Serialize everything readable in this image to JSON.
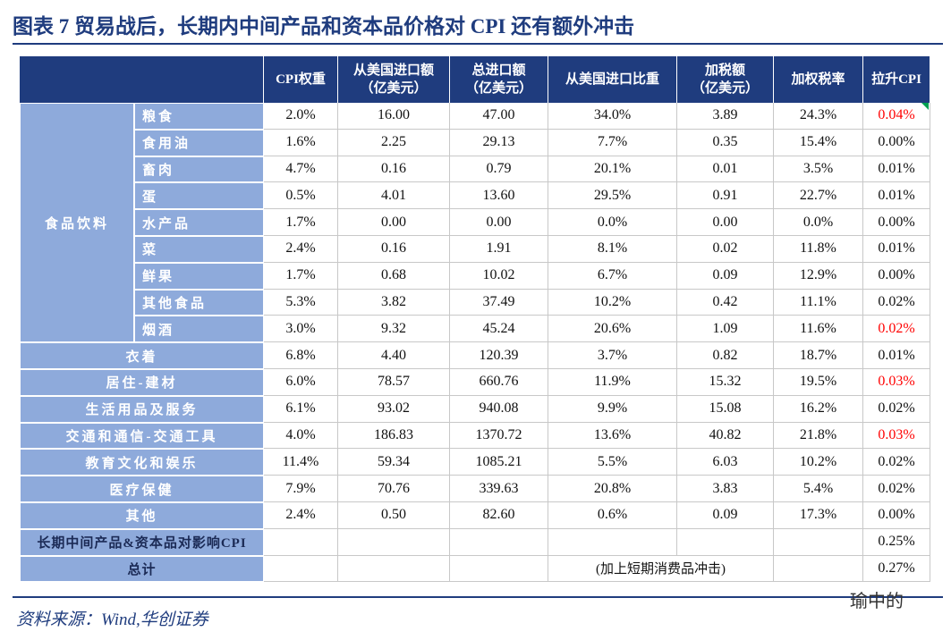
{
  "header": {
    "title": "图表 7  贸易战后，长期内中间产品和资本品价格对 CPI 还有额外冲击"
  },
  "table": {
    "columns": [
      [
        "CPI权重"
      ],
      [
        "从美国进口额",
        "（亿美元）"
      ],
      [
        "总进口额",
        "（亿美元）"
      ],
      [
        "从美国进口比重"
      ],
      [
        "加税额",
        "（亿美元）"
      ],
      [
        "加权税率"
      ],
      [
        "拉升CPI"
      ]
    ],
    "highlight_color": "#ff0000",
    "group": {
      "label": "食品饮料",
      "rows": [
        {
          "label": "粮食",
          "cells": [
            "2.0%",
            "16.00",
            "47.00",
            "34.0%",
            "3.89",
            "24.3%",
            "0.04%"
          ],
          "highlight": true
        },
        {
          "label": "食用油",
          "cells": [
            "1.6%",
            "2.25",
            "29.13",
            "7.7%",
            "0.35",
            "15.4%",
            "0.00%"
          ]
        },
        {
          "label": "畜肉",
          "cells": [
            "4.7%",
            "0.16",
            "0.79",
            "20.1%",
            "0.01",
            "3.5%",
            "0.01%"
          ]
        },
        {
          "label": "蛋",
          "cells": [
            "0.5%",
            "4.01",
            "13.60",
            "29.5%",
            "0.91",
            "22.7%",
            "0.01%"
          ]
        },
        {
          "label": "水产品",
          "cells": [
            "1.7%",
            "0.00",
            "0.00",
            "0.0%",
            "0.00",
            "0.0%",
            "0.00%"
          ]
        },
        {
          "label": "菜",
          "cells": [
            "2.4%",
            "0.16",
            "1.91",
            "8.1%",
            "0.02",
            "11.8%",
            "0.01%"
          ]
        },
        {
          "label": "鲜果",
          "cells": [
            "1.7%",
            "0.68",
            "10.02",
            "6.7%",
            "0.09",
            "12.9%",
            "0.00%"
          ]
        },
        {
          "label": "其他食品",
          "cells": [
            "5.3%",
            "3.82",
            "37.49",
            "10.2%",
            "0.42",
            "11.1%",
            "0.02%"
          ]
        },
        {
          "label": "烟酒",
          "cells": [
            "3.0%",
            "9.32",
            "45.24",
            "20.6%",
            "1.09",
            "11.6%",
            "0.02%"
          ],
          "highlight": true
        }
      ]
    },
    "rows": [
      {
        "label": "衣着",
        "cells": [
          "6.8%",
          "4.40",
          "120.39",
          "3.7%",
          "0.82",
          "18.7%",
          "0.01%"
        ]
      },
      {
        "label": "居住-建材",
        "cells": [
          "6.0%",
          "78.57",
          "660.76",
          "11.9%",
          "15.32",
          "19.5%",
          "0.03%"
        ],
        "highlight": true
      },
      {
        "label": "生活用品及服务",
        "cells": [
          "6.1%",
          "93.02",
          "940.08",
          "9.9%",
          "15.08",
          "16.2%",
          "0.02%"
        ]
      },
      {
        "label": "交通和通信-交通工具",
        "cells": [
          "4.0%",
          "186.83",
          "1370.72",
          "13.6%",
          "40.82",
          "21.8%",
          "0.03%"
        ],
        "highlight": true
      },
      {
        "label": "教育文化和娱乐",
        "cells": [
          "11.4%",
          "59.34",
          "1085.21",
          "5.5%",
          "6.03",
          "10.2%",
          "0.02%"
        ]
      },
      {
        "label": "医疗保健",
        "cells": [
          "7.9%",
          "70.76",
          "339.63",
          "20.8%",
          "3.83",
          "5.4%",
          "0.02%"
        ]
      },
      {
        "label": "其他",
        "cells": [
          "2.4%",
          "0.50",
          "82.60",
          "0.6%",
          "0.09",
          "17.3%",
          "0.00%"
        ]
      }
    ],
    "summary": [
      {
        "label": "长期中间产品&资本品对影响CPI",
        "result": "0.25%"
      },
      {
        "label": "总计",
        "note": "(加上短期消费品冲击)",
        "result": "0.27%"
      }
    ]
  },
  "footer": {
    "source": "资料来源：Wind,华创证券",
    "watermark": "瑜中的"
  }
}
